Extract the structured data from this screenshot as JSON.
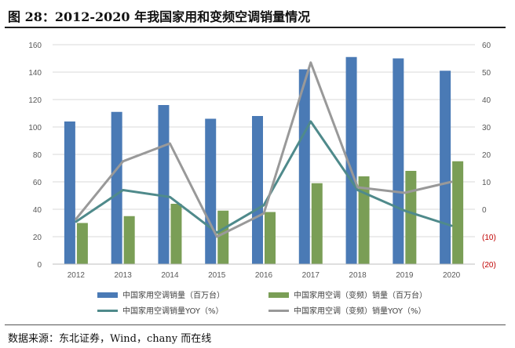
{
  "figure_title": "图 28：2012-2020 年我国家用和变频空调销量情况",
  "source_text": "数据来源：东北证券，Wind，chany 而在线",
  "colors": {
    "bar_total": "#4a7ab5",
    "bar_inverter": "#7a9e56",
    "line_total_yoy": "#4f8a8b",
    "line_inverter_yoy": "#999999",
    "axis_text": "#595959",
    "negative_text": "#c00000",
    "grid": "#d9d9d9"
  },
  "chart_data": {
    "type": "bar",
    "title": "",
    "categories": [
      "2012",
      "2013",
      "2014",
      "2015",
      "2016",
      "2017",
      "2018",
      "2019",
      "2020"
    ],
    "series": [
      {
        "name": "中国家用空调销量（百万台）",
        "kind": "bar",
        "axis": "left",
        "values": [
          104,
          111,
          116,
          106,
          108,
          142,
          151,
          150,
          141
        ]
      },
      {
        "name": "中国家用空调（变频）销量（百万台）",
        "kind": "bar",
        "axis": "left",
        "values": [
          30,
          35,
          44,
          39,
          38,
          59,
          64,
          68,
          75
        ]
      },
      {
        "name": "中国家用空调销量YOY（%）",
        "kind": "line",
        "axis": "right",
        "values": [
          -4.5,
          7,
          4.5,
          -8.5,
          1.5,
          32,
          7,
          -0.5,
          -6
        ]
      },
      {
        "name": "中国家用空调（变频）销量YOY（%）",
        "kind": "line",
        "axis": "right",
        "values": [
          -3.5,
          17.5,
          24,
          -10,
          -1.5,
          53.5,
          8,
          6,
          10
        ]
      }
    ],
    "left_axis": {
      "ylim": [
        0,
        160
      ],
      "ticks": [
        "0",
        "20",
        "40",
        "60",
        "80",
        "100",
        "120",
        "140",
        "160"
      ]
    },
    "right_axis": {
      "ylim": [
        -20,
        60
      ],
      "ticks": [
        "(20)",
        "(10)",
        "0",
        "10",
        "20",
        "30",
        "40",
        "50",
        "60"
      ]
    },
    "grid": true,
    "legend_position": "bottom"
  }
}
